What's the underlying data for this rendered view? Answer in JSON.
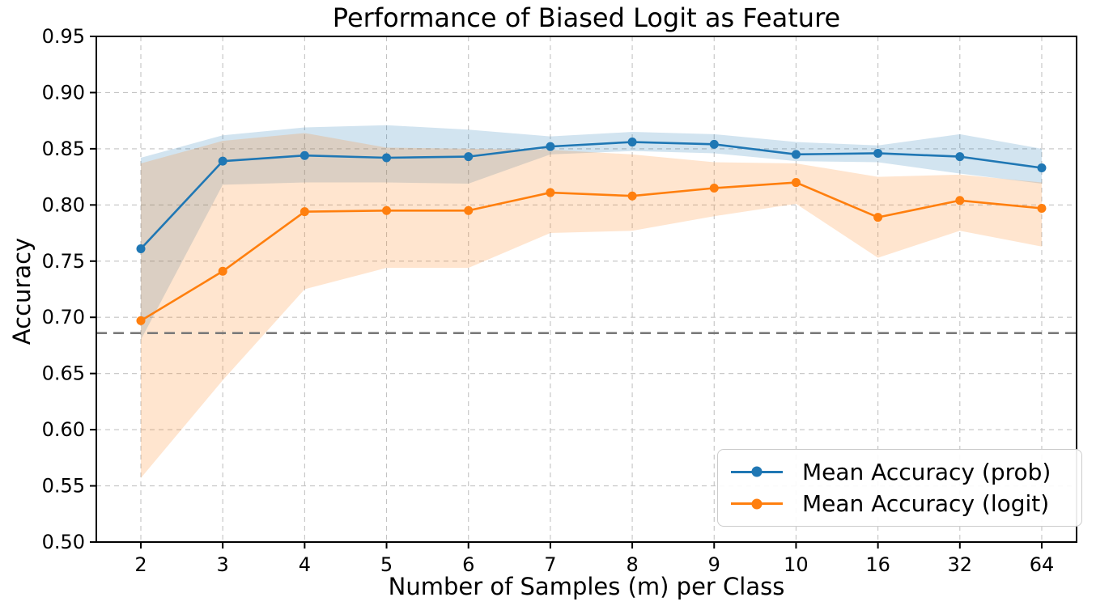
{
  "chart_data": {
    "type": "line",
    "title": "Performance of Biased Logit as Feature",
    "xlabel": "Number of Samples (m) per Class",
    "ylabel": "Accuracy",
    "categories": [
      "2",
      "3",
      "4",
      "5",
      "6",
      "7",
      "8",
      "9",
      "10",
      "16",
      "32",
      "64"
    ],
    "y_ticks": [
      "0.50",
      "0.55",
      "0.60",
      "0.65",
      "0.70",
      "0.75",
      "0.80",
      "0.85",
      "0.90",
      "0.95"
    ],
    "ylim": [
      0.5,
      0.95
    ],
    "grid": true,
    "grid_style": "dashed",
    "legend_position": "lower right",
    "baseline": {
      "value": 0.686,
      "style": "dashed",
      "color": "#7a7a7a"
    },
    "series": [
      {
        "name": "Mean Accuracy (prob)",
        "color": "#1f77b4",
        "values": [
          0.761,
          0.839,
          0.844,
          0.842,
          0.843,
          0.852,
          0.856,
          0.854,
          0.845,
          0.846,
          0.843,
          0.833
        ],
        "band_upper": [
          0.842,
          0.862,
          0.869,
          0.871,
          0.867,
          0.861,
          0.865,
          0.863,
          0.856,
          0.853,
          0.863,
          0.85
        ],
        "band_lower": [
          0.68,
          0.818,
          0.82,
          0.82,
          0.819,
          0.845,
          0.848,
          0.846,
          0.839,
          0.838,
          0.828,
          0.819
        ]
      },
      {
        "name": "Mean Accuracy (logit)",
        "color": "#ff7f0e",
        "values": [
          0.697,
          0.741,
          0.794,
          0.795,
          0.795,
          0.811,
          0.808,
          0.815,
          0.82,
          0.789,
          0.804,
          0.797
        ],
        "band_upper": [
          0.837,
          0.857,
          0.864,
          0.851,
          0.85,
          0.849,
          0.845,
          0.838,
          0.837,
          0.825,
          0.827,
          0.82
        ],
        "band_lower": [
          0.557,
          0.644,
          0.725,
          0.744,
          0.744,
          0.775,
          0.777,
          0.79,
          0.801,
          0.753,
          0.777,
          0.763
        ]
      }
    ]
  }
}
